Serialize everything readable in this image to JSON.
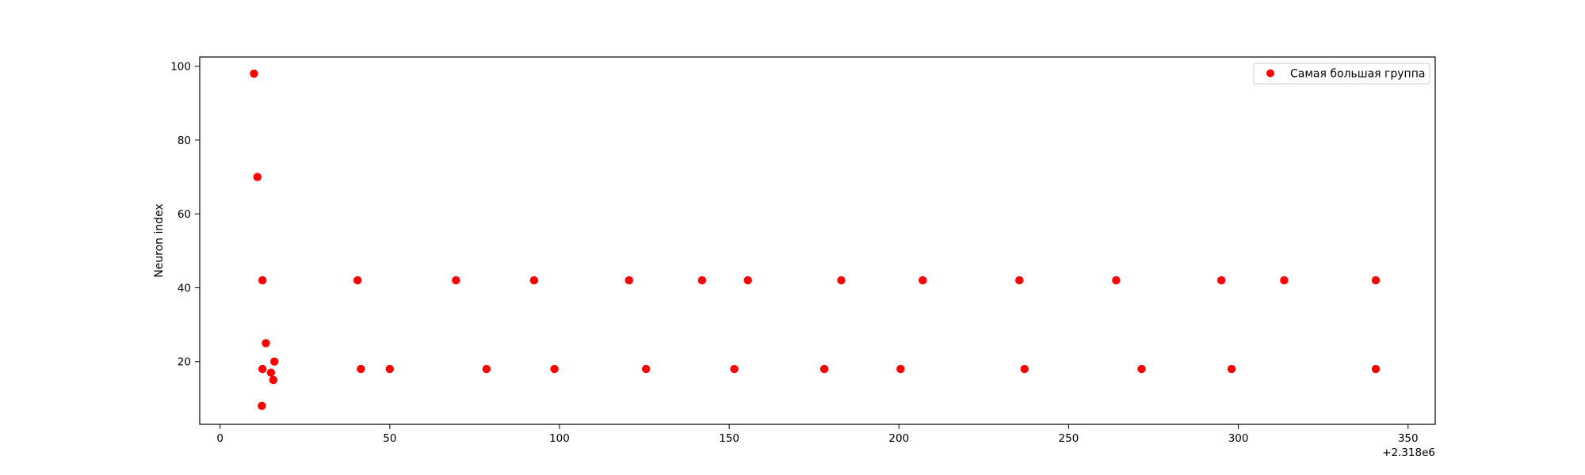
{
  "chart_data": {
    "type": "scatter",
    "ylabel": "Neuron index",
    "xlabel": "",
    "x_offset_label": "+2.318e6",
    "xlim": [
      -6,
      358
    ],
    "ylim": [
      3,
      102.5
    ],
    "x_ticks": [
      "0",
      "50",
      "100",
      "150",
      "200",
      "250",
      "300",
      "350"
    ],
    "y_ticks": [
      "20",
      "40",
      "60",
      "80",
      "100"
    ],
    "grid": false,
    "legend_placement": "top-right",
    "series": [
      {
        "name": "Самая большая группа",
        "color": "#ff0000",
        "points": [
          [
            10,
            98
          ],
          [
            11,
            70
          ],
          [
            12.5,
            42
          ],
          [
            12.5,
            18
          ],
          [
            12.3,
            8
          ],
          [
            13.5,
            25
          ],
          [
            15,
            17
          ],
          [
            15.7,
            15
          ],
          [
            16,
            20
          ],
          [
            40.5,
            42
          ],
          [
            41.5,
            18
          ],
          [
            50,
            18
          ],
          [
            69.5,
            42
          ],
          [
            78.5,
            18
          ],
          [
            92.5,
            42
          ],
          [
            98.5,
            18
          ],
          [
            120.5,
            42
          ],
          [
            125.5,
            18
          ],
          [
            142,
            42
          ],
          [
            151.5,
            18
          ],
          [
            155.5,
            42
          ],
          [
            178,
            18
          ],
          [
            183,
            42
          ],
          [
            200.5,
            18
          ],
          [
            207,
            42
          ],
          [
            235.5,
            42
          ],
          [
            237,
            18
          ],
          [
            264,
            42
          ],
          [
            271.5,
            18
          ],
          [
            295,
            42
          ],
          [
            298,
            18
          ],
          [
            313.5,
            42
          ],
          [
            340.5,
            42
          ],
          [
            340.5,
            18
          ]
        ]
      }
    ]
  }
}
